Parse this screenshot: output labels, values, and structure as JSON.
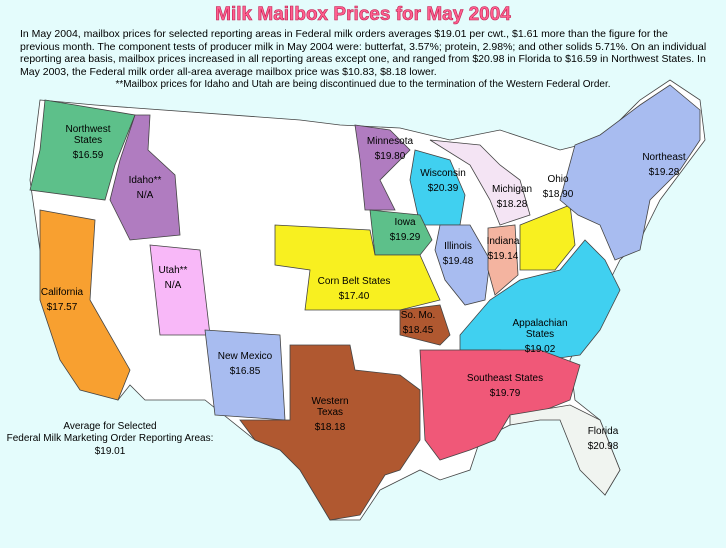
{
  "title": "Milk Mailbox Prices for May 2004",
  "intro": "In May 2004, mailbox prices for selected reporting areas in Federal milk orders averages $19.01 per cwt., $1.61 more than the figure for the previous month. The component tests of producer milk in May 2004 were: butterfat, 3.57%; protein, 2.98%; and other solids 5.71%. On an individual reporting area basis, mailbox prices increased in all reporting areas except one, and ranged from $20.98 in Florida to $16.59 in Northwest States. In May 2003, the Federal milk order all-area average mailbox price was $10.83, $8.18 lower.",
  "note": "**Mailbox prices for Idaho and Utah are being discontinued due to the termination of the Western Federal Order.",
  "regions": [
    {
      "name": "Northwest States",
      "price": "$16.59"
    },
    {
      "name": "Idaho**",
      "price": "N/A"
    },
    {
      "name": "California",
      "price": "$17.57"
    },
    {
      "name": "Utah**",
      "price": "N/A"
    },
    {
      "name": "Minnesota",
      "price": "$19.80"
    },
    {
      "name": "Wisconsin",
      "price": "$20.39"
    },
    {
      "name": "Michigan",
      "price": "$18.28"
    },
    {
      "name": "Iowa",
      "price": "$19.29"
    },
    {
      "name": "Illinois",
      "price": "$19.48"
    },
    {
      "name": "Indiana",
      "price": "$19.14"
    },
    {
      "name": "Ohio",
      "price": "$18.90"
    },
    {
      "name": "Northeast",
      "price": "$19.28"
    },
    {
      "name": "Corn Belt States",
      "price": "$17.40"
    },
    {
      "name": "So. Mo.",
      "price": "$18.45"
    },
    {
      "name": "Appalachian States",
      "price": "$19.02"
    },
    {
      "name": "New Mexico",
      "price": "$16.85"
    },
    {
      "name": "Western Texas",
      "price": "$18.18"
    },
    {
      "name": "Southeast States",
      "price": "$19.79"
    },
    {
      "name": "Florida",
      "price": "$20.98"
    }
  ],
  "average": {
    "label": "Average for Selected Federal Milk Marketing Order Reporting Areas:",
    "price": "$19.01"
  }
}
